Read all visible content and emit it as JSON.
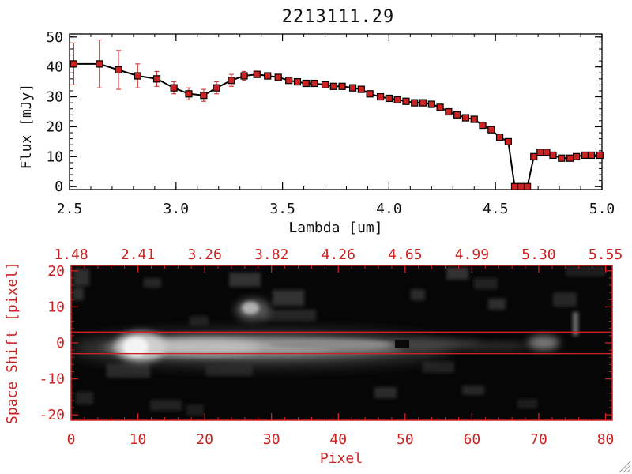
{
  "chart_data": [
    {
      "type": "line",
      "title": "2213111.29",
      "xlabel": "Lambda [um]",
      "ylabel": "Flux [mJy]",
      "xlim": [
        2.5,
        5.0
      ],
      "ylim": [
        -1,
        51
      ],
      "xticks": [
        "2.5",
        "3.0",
        "3.5",
        "4.0",
        "4.5",
        "5.0"
      ],
      "yticks": [
        "0",
        "10",
        "20",
        "30",
        "40",
        "50"
      ],
      "series": [
        {
          "name": "Flux",
          "x": [
            2.52,
            2.64,
            2.73,
            2.82,
            2.91,
            2.99,
            3.06,
            3.13,
            3.19,
            3.26,
            3.32,
            3.38,
            3.43,
            3.48,
            3.53,
            3.57,
            3.61,
            3.65,
            3.7,
            3.74,
            3.78,
            3.83,
            3.87,
            3.91,
            3.96,
            4.0,
            4.04,
            4.08,
            4.12,
            4.16,
            4.2,
            4.24,
            4.28,
            4.32,
            4.36,
            4.4,
            4.44,
            4.48,
            4.52,
            4.56,
            4.59,
            4.62,
            4.65,
            4.68,
            4.71,
            4.74,
            4.77,
            4.81,
            4.85,
            4.88,
            4.92,
            4.95,
            4.99
          ],
          "y": [
            41,
            41,
            39,
            37,
            36,
            33,
            31,
            30.5,
            33,
            35.5,
            37,
            37.5,
            37,
            36.5,
            35.5,
            35,
            34.5,
            34.5,
            34,
            33.5,
            33.5,
            33,
            32.5,
            31,
            30,
            29.5,
            29,
            28.5,
            28,
            28,
            27.5,
            26.5,
            25,
            24,
            23,
            22.5,
            20.5,
            19,
            16.5,
            15,
            0,
            0,
            0,
            10,
            11.5,
            11.5,
            10.5,
            9.5,
            9.5,
            10,
            10.5,
            10.5,
            10.5
          ],
          "err": [
            7,
            8,
            6.5,
            4,
            2.5,
            2,
            2,
            2,
            2,
            2,
            1.5,
            0,
            0,
            0,
            0,
            0,
            0,
            0,
            0,
            0,
            0,
            0,
            0,
            0,
            0,
            0,
            0,
            0,
            0,
            0,
            0,
            0,
            0,
            0,
            0,
            0,
            0,
            0,
            0,
            0,
            0,
            0,
            0,
            0,
            0,
            0,
            0,
            0,
            0,
            0,
            0,
            0,
            0
          ]
        }
      ]
    },
    {
      "type": "heatmap",
      "xlabel": "Pixel",
      "ylabel": "Space Shift [pixel]",
      "xlim": [
        0,
        81
      ],
      "ylim": [
        -21.5,
        21.5
      ],
      "xticks": [
        "0",
        "10",
        "20",
        "30",
        "40",
        "50",
        "60",
        "70",
        "80"
      ],
      "yticks": [
        "-20",
        "-10",
        "0",
        "10",
        "20"
      ],
      "top_axis_ticks": [
        "1.48",
        "2.41",
        "3.26",
        "3.82",
        "4.26",
        "4.65",
        "4.99",
        "5.30",
        "5.55"
      ],
      "extraction_lines": [
        3,
        -3
      ],
      "colors": {
        "axis": "#cc2222",
        "extraction_line": "#cc2222",
        "marker": "#cc2222"
      }
    }
  ]
}
